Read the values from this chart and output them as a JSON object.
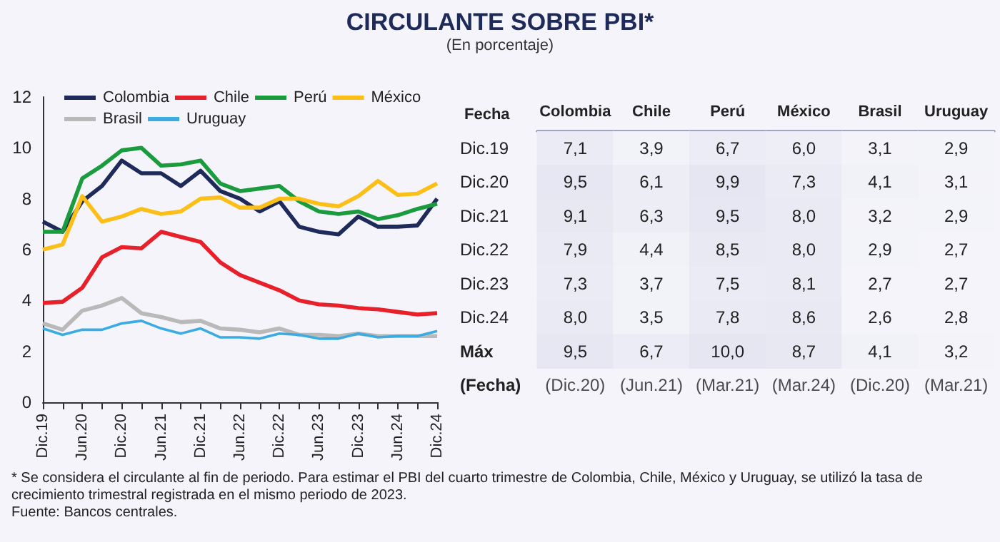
{
  "chart_data": [
    {
      "type": "line",
      "title": "CIRCULANTE SOBRE PBI*",
      "subtitle": "(En porcentaje)",
      "categories": [
        "Dic.19",
        null,
        "Jun.20",
        null,
        "Dic.20",
        null,
        "Jun.21",
        null,
        "Dic.21",
        null,
        "Jun.22",
        null,
        "Dic.22",
        null,
        "Jun.23",
        null,
        "Dic.23",
        null,
        "Jun.24",
        null,
        "Dic.24"
      ],
      "series": [
        {
          "name": "Colombia",
          "color": "#1d2a5a",
          "values": [
            7.1,
            6.7,
            7.9,
            8.5,
            9.5,
            9.0,
            9.0,
            8.5,
            9.1,
            8.3,
            8.0,
            7.5,
            7.9,
            6.9,
            6.7,
            6.6,
            7.3,
            6.9,
            6.9,
            6.95,
            8.0
          ]
        },
        {
          "name": "Chile",
          "color": "#e8202a",
          "values": [
            3.9,
            3.95,
            4.5,
            5.7,
            6.1,
            6.05,
            6.7,
            6.5,
            6.3,
            5.5,
            5.0,
            4.7,
            4.4,
            4.0,
            3.85,
            3.8,
            3.7,
            3.65,
            3.55,
            3.45,
            3.5
          ]
        },
        {
          "name": "Perú",
          "color": "#1a9c3e",
          "values": [
            6.7,
            6.7,
            8.8,
            9.3,
            9.9,
            10.0,
            9.3,
            9.35,
            9.5,
            8.6,
            8.3,
            8.4,
            8.5,
            7.9,
            7.5,
            7.4,
            7.5,
            7.2,
            7.35,
            7.6,
            7.8
          ]
        },
        {
          "name": "México",
          "color": "#fbbf17",
          "values": [
            6.0,
            6.2,
            8.1,
            7.1,
            7.3,
            7.6,
            7.4,
            7.5,
            8.0,
            8.05,
            7.65,
            7.65,
            8.0,
            8.0,
            7.8,
            7.7,
            8.1,
            8.7,
            8.15,
            8.2,
            8.6
          ]
        },
        {
          "name": "Brasil",
          "color": "#b9b9b9",
          "values": [
            3.1,
            2.85,
            3.6,
            3.8,
            4.1,
            3.5,
            3.35,
            3.15,
            3.2,
            2.9,
            2.85,
            2.75,
            2.9,
            2.65,
            2.65,
            2.6,
            2.7,
            2.6,
            2.6,
            2.6,
            2.6
          ]
        },
        {
          "name": "Uruguay",
          "color": "#3aace2",
          "values": [
            2.9,
            2.65,
            2.85,
            2.85,
            3.1,
            3.2,
            2.9,
            2.7,
            2.9,
            2.55,
            2.55,
            2.5,
            2.7,
            2.65,
            2.5,
            2.5,
            2.7,
            2.55,
            2.6,
            2.6,
            2.8
          ]
        }
      ],
      "ylim": [
        0,
        12
      ],
      "yticks": [
        0,
        2,
        4,
        6,
        8,
        10,
        12
      ],
      "grid": false,
      "legend": "top",
      "marker": "none",
      "annotations": [
        "* Se considera el circulante al fin de periodo. Para estimar el PBI del cuarto trimestre de Colombia, Chile, México y Uruguay, se utilizó la tasa de crecimiento trimestral registrada en el mismo periodo de 2023.",
        "Fuente: Bancos centrales."
      ]
    },
    {
      "type": "heatmap",
      "ylabel": "Fecha",
      "categories": [
        "Colombia",
        "Chile",
        "Perú",
        "México",
        "Brasil",
        "Uruguay"
      ],
      "y_categories": [
        "Dic.19",
        "Dic.20",
        "Dic.21",
        "Dic.22",
        "Dic.23",
        "Dic.24",
        "Máx",
        "(Fecha)"
      ],
      "cells": [
        [
          7.1,
          3.9,
          6.7,
          6.0,
          3.1,
          2.9
        ],
        [
          9.5,
          6.1,
          9.9,
          7.3,
          4.1,
          3.1
        ],
        [
          9.1,
          6.3,
          9.5,
          8.0,
          3.2,
          2.9
        ],
        [
          7.9,
          4.4,
          8.5,
          8.0,
          2.9,
          2.7
        ],
        [
          7.3,
          3.7,
          7.5,
          8.1,
          2.7,
          2.7
        ],
        [
          8.0,
          3.5,
          7.8,
          8.6,
          2.6,
          2.8
        ],
        [
          9.5,
          6.7,
          10.0,
          8.7,
          4.1,
          3.2
        ],
        [
          null,
          null,
          null,
          null,
          null,
          null
        ]
      ],
      "cell_labels": [
        [
          "7,1",
          "3,9",
          "6,7",
          "6,0",
          "3,1",
          "2,9"
        ],
        [
          "9,5",
          "6,1",
          "9,9",
          "7,3",
          "4,1",
          "3,1"
        ],
        [
          "9,1",
          "6,3",
          "9,5",
          "8,0",
          "3,2",
          "2,9"
        ],
        [
          "7,9",
          "4,4",
          "8,5",
          "8,0",
          "2,9",
          "2,7"
        ],
        [
          "7,3",
          "3,7",
          "7,5",
          "8,1",
          "2,7",
          "2,7"
        ],
        [
          "8,0",
          "3,5",
          "7,8",
          "8,6",
          "2,6",
          "2,8"
        ],
        [
          "9,5",
          "6,7",
          "10,0",
          "8,7",
          "4,1",
          "3,2"
        ],
        [
          "(Dic.20)",
          "(Jun.21)",
          "(Mar.21)",
          "(Mar.24)",
          "(Dic.20)",
          "(Mar.21)"
        ]
      ]
    }
  ]
}
